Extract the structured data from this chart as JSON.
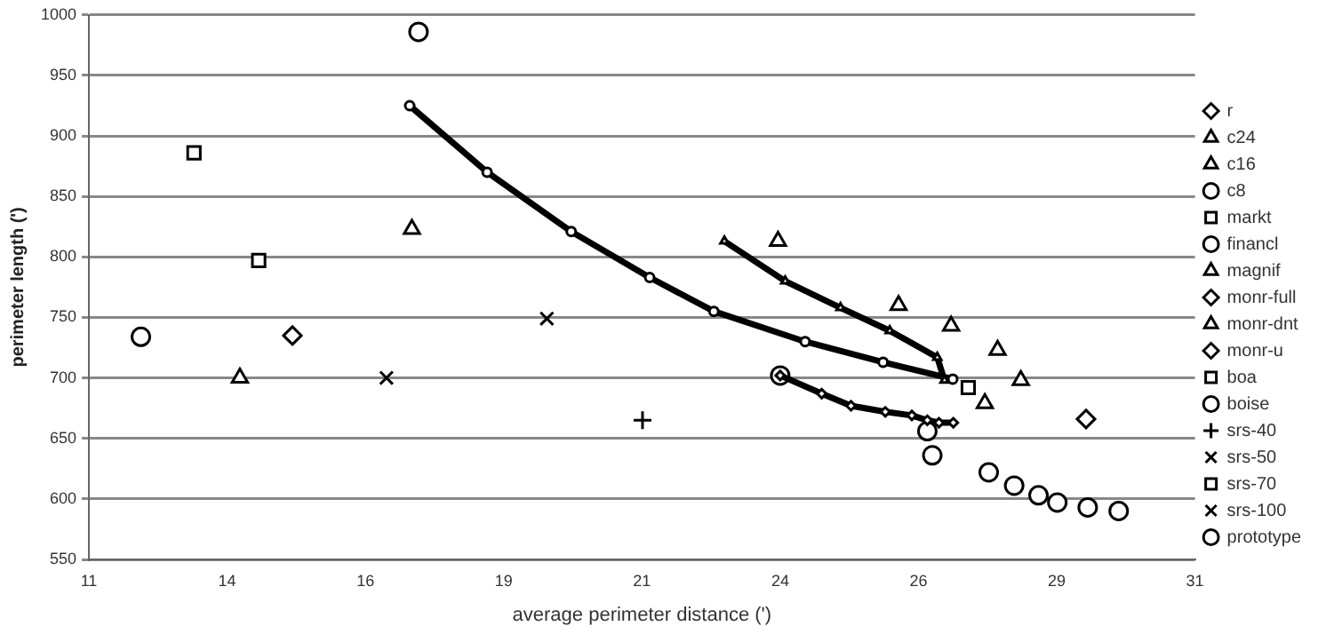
{
  "chart_data": {
    "type": "scatter",
    "xlabel": "average perimeter distance (')",
    "ylabel": "perimeter length (')",
    "xlim": [
      11,
      31
    ],
    "ylim": [
      550,
      1000
    ],
    "xticks": [
      11,
      {
        "value": 13.5,
        "label": "14"
      },
      16,
      {
        "value": 18.5,
        "label": "19"
      },
      21,
      {
        "value": 23.5,
        "label": "24"
      },
      26,
      {
        "value": 28.5,
        "label": "29"
      },
      31
    ],
    "yticks": [
      550,
      600,
      650,
      700,
      750,
      800,
      850,
      900,
      950,
      1000
    ],
    "grid": "y",
    "legend": "right",
    "series": [
      {
        "name": "r",
        "type": "line",
        "marker": "diamond",
        "color": "#000000",
        "x": [
          23.5,
          24.25,
          24.78,
          25.4,
          25.88,
          26.16,
          26.37,
          26.63
        ],
        "values": [
          702,
          687,
          677,
          672,
          669,
          665,
          663,
          663
        ]
      },
      {
        "name": "c24",
        "marker": "triangle",
        "color": "#000000",
        "x": [
          23.46,
          25.64,
          26.59,
          27.43,
          27.85,
          27.2
        ],
        "values": [
          813,
          760,
          743,
          723,
          698,
          679
        ]
      },
      {
        "name": "c16",
        "type": "line",
        "marker": "triangle",
        "color": "#000000",
        "x": [
          22.49,
          23.59,
          24.59,
          25.48,
          26.34,
          26.47
        ],
        "values": [
          813,
          780,
          758,
          739,
          717,
          698
        ]
      },
      {
        "name": "c8",
        "type": "line",
        "marker": "circle",
        "color": "#000000",
        "x": [
          16.8,
          18.2,
          19.72,
          21.14,
          22.3,
          23.95,
          25.36,
          26.62
        ],
        "values": [
          925,
          870,
          821,
          783,
          755,
          730,
          713,
          699
        ]
      },
      {
        "name": "markt",
        "marker": "square",
        "color": "#000000",
        "x": [
          26.9
        ],
        "values": [
          692
        ]
      },
      {
        "name": "financl",
        "marker": "circle",
        "color": "#000000",
        "x": [
          16.96
        ],
        "values": [
          986
        ]
      },
      {
        "name": "magnif",
        "marker": "triangle",
        "color": "#000000",
        "x": [
          16.84
        ],
        "values": [
          823
        ]
      },
      {
        "name": "monr-full",
        "marker": "diamond",
        "color": "#000000",
        "x": [
          29.03
        ],
        "values": [
          666
        ]
      },
      {
        "name": "monr-dnt",
        "marker": "triangle",
        "color": "#000000",
        "x": [
          13.73
        ],
        "values": [
          700
        ]
      },
      {
        "name": "monr-u",
        "marker": "diamond",
        "color": "#000000",
        "x": [
          14.68
        ],
        "values": [
          735
        ]
      },
      {
        "name": "boa",
        "marker": "square",
        "color": "#000000",
        "x": [
          14.07
        ],
        "values": [
          797
        ]
      },
      {
        "name": "boise",
        "marker": "circle",
        "color": "#000000",
        "x": [
          11.94
        ],
        "values": [
          734
        ]
      },
      {
        "name": "srs-40",
        "marker": "cross",
        "color": "#000000",
        "x": [
          21.01
        ],
        "values": [
          665
        ]
      },
      {
        "name": "srs-50",
        "marker": "x",
        "color": "#000000",
        "x": [
          19.28
        ],
        "values": [
          749
        ]
      },
      {
        "name": "srs-70",
        "marker": "square",
        "color": "#000000",
        "x": [
          12.9
        ],
        "values": [
          886
        ]
      },
      {
        "name": "srs-100",
        "marker": "x",
        "color": "#000000",
        "x": [
          16.38
        ],
        "values": [
          700
        ]
      },
      {
        "name": "prototype",
        "marker": "circle",
        "color": "#000000",
        "x": [
          23.5
        ],
        "values": [
          702
        ]
      },
      {
        "marker": "circle",
        "color": "#000000",
        "x": [
          26.16,
          26.25,
          27.27,
          27.73,
          28.17,
          28.51,
          29.06,
          29.62
        ],
        "values": [
          656,
          636,
          622,
          611,
          603,
          597,
          593,
          590
        ]
      }
    ]
  }
}
